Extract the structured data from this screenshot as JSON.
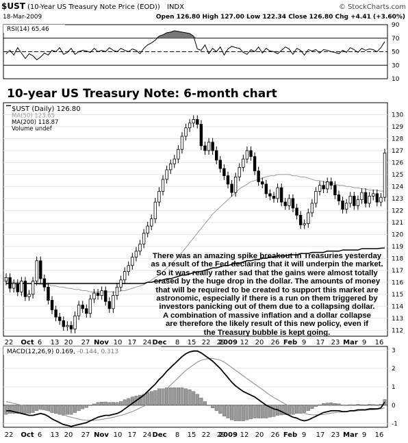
{
  "header": {
    "symbol": "$UST",
    "description": "(10-Year US Treasury Note Price (EOD))",
    "exchange": "INDX",
    "watermark": "© StockCharts.com",
    "date": "18-Mar-2009",
    "quote": "Open 126.80  High 127.00  Low 122.34  Close 126.80  Chg +4.41 (+3.60%)",
    "quote_arrow": "▲"
  },
  "rsi_panel": {
    "label": "RSI(14) 65.46",
    "ticks": [
      "90",
      "70",
      "50",
      "30",
      "10"
    ]
  },
  "price_panel": {
    "chart_title": "10-year US Treasury Note: 6-month chart",
    "legend": [
      {
        "text": "$UST (Daily) 126.80",
        "color": "#000000"
      },
      {
        "text": "MA(50) 123.65",
        "color": "#9a9a9a"
      },
      {
        "text": "MA(200) 118.87",
        "color": "#000000"
      },
      {
        "text": "Volume undef",
        "color": "#000000"
      }
    ],
    "ticks": [
      "130",
      "129",
      "128",
      "127",
      "126",
      "125",
      "124",
      "123",
      "122",
      "121",
      "120",
      "119",
      "118",
      "117",
      "116",
      "115",
      "114",
      "113",
      "112"
    ],
    "annotation": [
      "There was an amazing spike breakout in Treasuries yesterday",
      "as a result of the Fed declaring that it will underpin the market.",
      "So it was really rather sad that the gains were almost totally",
      "erased by the huge drop in the dollar. The amounts of money",
      "that will be required to be created to support this market are",
      "astronomic, especially if there is a run on them triggered by",
      "investors panicking out of them due to a collapsing dollar.",
      "A combination of massive inflation and a dollar collapse",
      "are therefore the likely result of this new policy, even if",
      "the Treasury bubble is kept going."
    ]
  },
  "x_axis": {
    "labels": [
      "22",
      "Oct",
      "6",
      "13",
      "20",
      "27",
      "Nov",
      "10",
      "17",
      "24",
      "Dec",
      "8",
      "15",
      "22",
      "29",
      "2009",
      "12",
      "20",
      "26",
      "Feb",
      "9",
      "17",
      "23",
      "Mar",
      "9",
      "16"
    ]
  },
  "macd_panel": {
    "label": "MACD(12,26,9) 0.169, -0.144, 0.313",
    "label_parts": [
      "MACD(12,26,9) 0.169, ",
      "-0.144, 0.313"
    ],
    "ticks": [
      "3",
      "2",
      "1",
      "0",
      "-1"
    ]
  },
  "chart_data": [
    {
      "type": "line",
      "title": "RSI(14) 65.46",
      "ylim": [
        10,
        90
      ],
      "reference_lines": [
        30,
        50,
        70
      ],
      "series": [
        {
          "name": "RSI(14)",
          "values": [
            47,
            52,
            45,
            56,
            48,
            40,
            47,
            44,
            38,
            42,
            48,
            45,
            52,
            50,
            56,
            46,
            49,
            55,
            46,
            50,
            52,
            51,
            49,
            55,
            50,
            52,
            50,
            56,
            52,
            50,
            55,
            52,
            50,
            54,
            52,
            47,
            55,
            60,
            63,
            67,
            73,
            75,
            78,
            79,
            81,
            80,
            79,
            78,
            77,
            73,
            54,
            52,
            60,
            47,
            55,
            50,
            57,
            45,
            54,
            58,
            56,
            55,
            49,
            46,
            53,
            50,
            57,
            48,
            55,
            51,
            50,
            47,
            52,
            57,
            54,
            46,
            55,
            52,
            45,
            53,
            51,
            53,
            48,
            53,
            52,
            50,
            49,
            47,
            52,
            49,
            56,
            53,
            49,
            55,
            52,
            54,
            53,
            50,
            56,
            65
          ]
        }
      ]
    },
    {
      "type": "candlestick",
      "title": "10-year US Treasury Note: 6-month chart",
      "ylim": [
        111.5,
        131
      ],
      "x_range": [
        "2008-09-22",
        "2009-03-18"
      ],
      "series": [
        {
          "name": "$UST (Daily) 126.80",
          "close": [
            116.4,
            115.5,
            115.9,
            115.2,
            116.1,
            114.8,
            115.0,
            116.1,
            117.8,
            116.3,
            115.6,
            114.5,
            113.7,
            113.1,
            112.8,
            112.3,
            112.4,
            112.1,
            113.2,
            114.1,
            113.8,
            113.4,
            114.6,
            115.1,
            114.9,
            115.3,
            114.4,
            113.8,
            114.9,
            115.6,
            116.2,
            116.9,
            117.4,
            118.1,
            118.6,
            119.2,
            120.1,
            120.7,
            121.3,
            122.7,
            123.6,
            124.6,
            125.4,
            125.9,
            126.3,
            127.1,
            128.2,
            128.9,
            129.3,
            129.6,
            129.2,
            127.4,
            127.0,
            127.7,
            127.0,
            126.2,
            125.5,
            124.9,
            124.2,
            123.5,
            124.8,
            125.6,
            126.3,
            127.0,
            126.5,
            125.3,
            124.4,
            124.2,
            123.4,
            123.2,
            123.0,
            123.9,
            122.7,
            122.4,
            123.0,
            122.2,
            121.6,
            120.8,
            120.9,
            121.8,
            122.6,
            123.6,
            124.1,
            123.8,
            124.4,
            124.1,
            123.3,
            122.8,
            122.1,
            122.6,
            123.2,
            122.4,
            122.9,
            123.5,
            122.6,
            123.2,
            123.4,
            122.7,
            123.1,
            126.8
          ]
        },
        {
          "name": "MA(50) 123.65",
          "values": [
            116,
            116,
            116,
            116,
            116,
            115.9,
            115.9,
            115.9,
            115.9,
            115.8,
            115.8,
            115.8,
            115.7,
            115.7,
            115.6,
            115.6,
            115.5,
            115.5,
            115.4,
            115.4,
            115.3,
            115.3,
            115.2,
            115.2,
            115.2,
            115.2,
            115.2,
            115.2,
            115.2,
            115.2,
            115.3,
            115.3,
            115.4,
            115.5,
            115.6,
            115.7,
            115.8,
            116,
            116.2,
            116.4,
            116.6,
            116.9,
            117.2,
            117.5,
            117.8,
            118.1,
            118.5,
            118.9,
            119.3,
            119.7,
            120.1,
            120.5,
            120.9,
            121.3,
            121.7,
            122,
            122.3,
            122.6,
            122.9,
            123.2,
            123.5,
            123.8,
            124,
            124.2,
            124.4,
            124.5,
            124.6,
            124.7,
            124.8,
            124.9,
            124.9,
            125,
            125,
            125,
            125,
            124.9,
            124.9,
            124.8,
            124.8,
            124.7,
            124.6,
            124.5,
            124.5,
            124.4,
            124.3,
            124.3,
            124.2,
            124.1,
            124.1,
            124,
            124,
            123.9,
            123.9,
            123.8,
            123.8,
            123.7,
            123.7,
            123.7,
            123.6,
            123.65
          ]
        },
        {
          "name": "MA(200) 118.87",
          "values": [
            115.9,
            115.9,
            115.9,
            115.9,
            115.9,
            115.9,
            115.9,
            115.9,
            115.9,
            115.9,
            115.9,
            115.9,
            115.9,
            115.9,
            115.9,
            115.9,
            115.9,
            115.9,
            115.9,
            115.9,
            115.9,
            115.9,
            115.9,
            115.9,
            115.9,
            115.9,
            115.9,
            115.9,
            115.9,
            115.9,
            115.9,
            115.9,
            115.9,
            115.9,
            115.9,
            115.9,
            115.9,
            116,
            116,
            116.1,
            116.1,
            116.2,
            116.3,
            116.3,
            116.4,
            116.5,
            116.6,
            116.6,
            116.7,
            116.8,
            116.9,
            116.9,
            117,
            117.1,
            117.2,
            117.2,
            117.3,
            117.4,
            117.4,
            117.5,
            117.6,
            117.6,
            117.7,
            117.8,
            117.8,
            117.9,
            117.9,
            118,
            118,
            118.1,
            118.1,
            118.2,
            118.2,
            118.2,
            118.3,
            118.3,
            118.3,
            118.4,
            118.4,
            118.4,
            118.5,
            118.5,
            118.5,
            118.5,
            118.6,
            118.6,
            118.6,
            118.6,
            118.7,
            118.7,
            118.7,
            118.7,
            118.7,
            118.8,
            118.8,
            118.8,
            118.8,
            118.8,
            118.85,
            118.87
          ]
        }
      ]
    },
    {
      "type": "line",
      "title": "MACD(12,26,9) 0.169, -0.144, 0.313",
      "ylim": [
        -1.2,
        3.2
      ],
      "series": [
        {
          "name": "MACD",
          "values": [
            -0.3,
            -0.3,
            -0.35,
            -0.4,
            -0.45,
            -0.5,
            -0.55,
            -0.55,
            -0.5,
            -0.45,
            -0.5,
            -0.6,
            -0.75,
            -0.85,
            -0.95,
            -1.05,
            -1.1,
            -1.15,
            -1.1,
            -1.05,
            -1.0,
            -0.95,
            -0.85,
            -0.75,
            -0.65,
            -0.6,
            -0.55,
            -0.55,
            -0.5,
            -0.45,
            -0.35,
            -0.2,
            -0.05,
            0.1,
            0.25,
            0.4,
            0.55,
            0.75,
            0.95,
            1.15,
            1.4,
            1.6,
            1.85,
            2.05,
            2.25,
            2.45,
            2.65,
            2.8,
            2.9,
            2.95,
            2.95,
            2.85,
            2.7,
            2.55,
            2.4,
            2.2,
            2.0,
            1.75,
            1.5,
            1.25,
            1.05,
            0.9,
            0.75,
            0.65,
            0.55,
            0.45,
            0.3,
            0.15,
            0.0,
            -0.1,
            -0.2,
            -0.25,
            -0.35,
            -0.45,
            -0.55,
            -0.65,
            -0.7,
            -0.8,
            -0.85,
            -0.8,
            -0.7,
            -0.6,
            -0.5,
            -0.4,
            -0.35,
            -0.3,
            -0.3,
            -0.3,
            -0.35,
            -0.35,
            -0.3,
            -0.3,
            -0.25,
            -0.25,
            -0.25,
            -0.2,
            -0.2,
            -0.2,
            -0.15,
            0.169
          ]
        },
        {
          "name": "Signal",
          "values": [
            0.2,
            0.15,
            0.1,
            0.05,
            0.0,
            -0.05,
            -0.1,
            -0.15,
            -0.2,
            -0.22,
            -0.25,
            -0.3,
            -0.35,
            -0.4,
            -0.45,
            -0.5,
            -0.6,
            -0.65,
            -0.7,
            -0.75,
            -0.8,
            -0.82,
            -0.83,
            -0.82,
            -0.8,
            -0.77,
            -0.73,
            -0.7,
            -0.66,
            -0.6,
            -0.55,
            -0.5,
            -0.42,
            -0.35,
            -0.25,
            -0.15,
            -0.05,
            0.05,
            0.2,
            0.35,
            0.5,
            0.7,
            0.9,
            1.1,
            1.3,
            1.5,
            1.7,
            1.9,
            2.05,
            2.2,
            2.35,
            2.45,
            2.5,
            2.55,
            2.55,
            2.5,
            2.45,
            2.35,
            2.2,
            2.05,
            1.9,
            1.75,
            1.6,
            1.45,
            1.3,
            1.15,
            1.0,
            0.85,
            0.7,
            0.55,
            0.42,
            0.3,
            0.18,
            0.06,
            -0.05,
            -0.15,
            -0.25,
            -0.35,
            -0.45,
            -0.5,
            -0.52,
            -0.53,
            -0.52,
            -0.5,
            -0.47,
            -0.43,
            -0.4,
            -0.38,
            -0.36,
            -0.35,
            -0.33,
            -0.32,
            -0.3,
            -0.28,
            -0.27,
            -0.25,
            -0.24,
            -0.22,
            -0.2,
            -0.144
          ]
        }
      ]
    }
  ],
  "colors": {
    "rsi_fill": "#777777",
    "ma50": "#9a9a9a",
    "ma200": "#000000",
    "histogram": "#999999",
    "candle": "#000000"
  }
}
